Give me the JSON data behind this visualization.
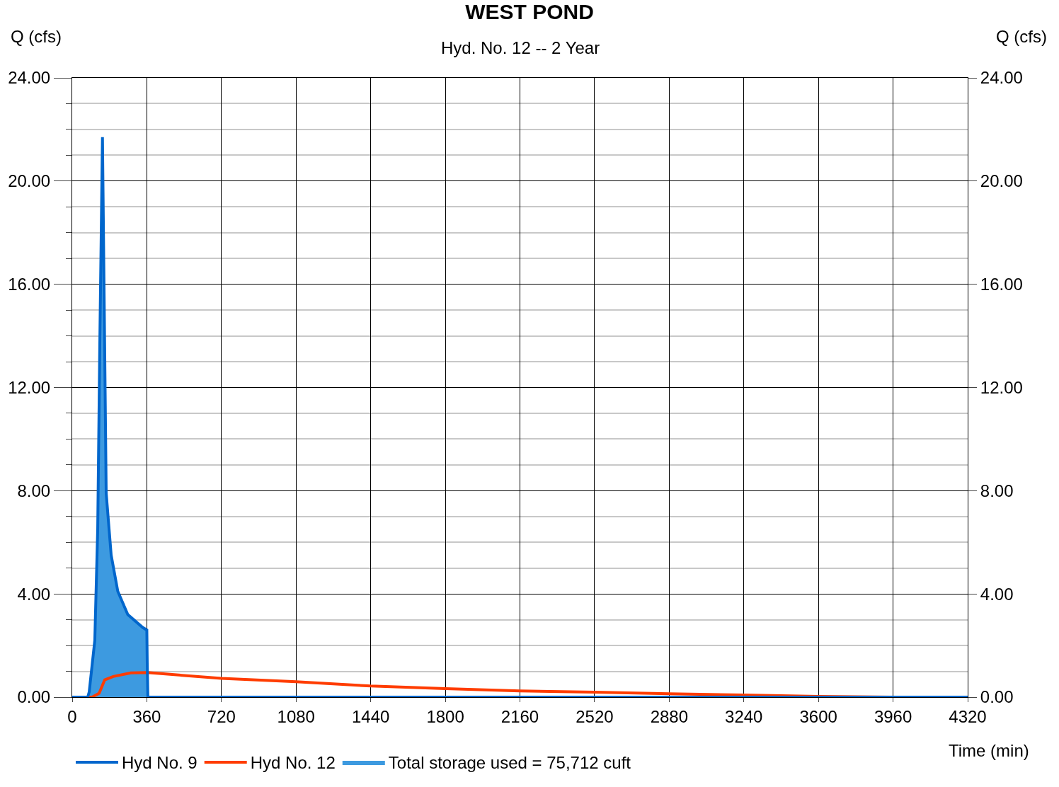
{
  "chart_data": {
    "type": "line",
    "title": "WEST POND",
    "subtitle": "Hyd. No. 12 -- 2 Year",
    "xlabel": "Time (min)",
    "ylabel": "Q (cfs)",
    "y2label": "Q (cfs)",
    "xlim": [
      0,
      4320
    ],
    "xticks": [
      0,
      360,
      720,
      1080,
      1440,
      1800,
      2160,
      2520,
      2880,
      3240,
      3600,
      3960,
      4320
    ],
    "ylim": [
      0,
      24
    ],
    "yticks": [
      {
        "value": 0,
        "label": "0.00"
      },
      {
        "value": 1,
        "label": null
      },
      {
        "value": 2,
        "label": null
      },
      {
        "value": 3,
        "label": null
      },
      {
        "value": 4,
        "label": "4.00"
      },
      {
        "value": 5,
        "label": null
      },
      {
        "value": 6,
        "label": null
      },
      {
        "value": 7,
        "label": null
      },
      {
        "value": 8,
        "label": "8.00"
      },
      {
        "value": 9,
        "label": null
      },
      {
        "value": 10,
        "label": null
      },
      {
        "value": 11,
        "label": null
      },
      {
        "value": 12,
        "label": "12.00"
      },
      {
        "value": 13,
        "label": null
      },
      {
        "value": 14,
        "label": null
      },
      {
        "value": 15,
        "label": null
      },
      {
        "value": 16,
        "label": "16.00"
      },
      {
        "value": 17,
        "label": null
      },
      {
        "value": 18,
        "label": null
      },
      {
        "value": 19,
        "label": null
      },
      {
        "value": 20,
        "label": "20.00"
      },
      {
        "value": 21,
        "label": null
      },
      {
        "value": 22,
        "label": null
      },
      {
        "value": 23,
        "label": null
      },
      {
        "value": 24,
        "label": "24.00"
      }
    ],
    "y2lim": [
      0,
      24
    ],
    "y2ticks": [
      {
        "value": 0,
        "label": "0.00"
      },
      {
        "value": 4,
        "label": "4.00"
      },
      {
        "value": 8,
        "label": "8.00"
      },
      {
        "value": 12,
        "label": "12.00"
      },
      {
        "value": 16,
        "label": "16.00"
      },
      {
        "value": 20,
        "label": "20.00"
      },
      {
        "value": 24,
        "label": "24.00"
      }
    ],
    "grid": true,
    "legend": "bottom",
    "series": [
      {
        "name": "Total storage used = 75,712 cuft",
        "type": "area",
        "color": "#3d9ae0",
        "x": [
          0,
          75,
          82,
          109,
          123,
          133,
          146,
          164,
          188,
          220,
          268,
          340,
          360,
          362,
          365
        ],
        "values": [
          0,
          0,
          0.2,
          2.2,
          6.5,
          13.6,
          21.7,
          7.9,
          5.5,
          4.1,
          3.2,
          2.7,
          2.6,
          1.3,
          0
        ]
      },
      {
        "name": "Hyd No. 12",
        "color": "#ff3c00",
        "x": [
          0,
          96,
          130,
          157,
          198,
          283,
          362,
          720,
          1080,
          1440,
          1800,
          2160,
          2520,
          2880,
          3240,
          3600,
          3960,
          4320
        ],
        "values": [
          0,
          0,
          0.15,
          0.67,
          0.8,
          0.94,
          0.95,
          0.73,
          0.6,
          0.43,
          0.33,
          0.24,
          0.19,
          0.13,
          0.08,
          0.03,
          0,
          0
        ]
      },
      {
        "name": "Hyd No. 9",
        "color": "#0066cc",
        "x": [
          0,
          75,
          82,
          109,
          123,
          133,
          146,
          164,
          188,
          220,
          268,
          340,
          360,
          362,
          365,
          4320
        ],
        "values": [
          0,
          0,
          0.2,
          2.2,
          6.5,
          13.6,
          21.7,
          7.9,
          5.5,
          4.1,
          3.2,
          2.7,
          2.6,
          1.3,
          0,
          0
        ]
      }
    ]
  }
}
